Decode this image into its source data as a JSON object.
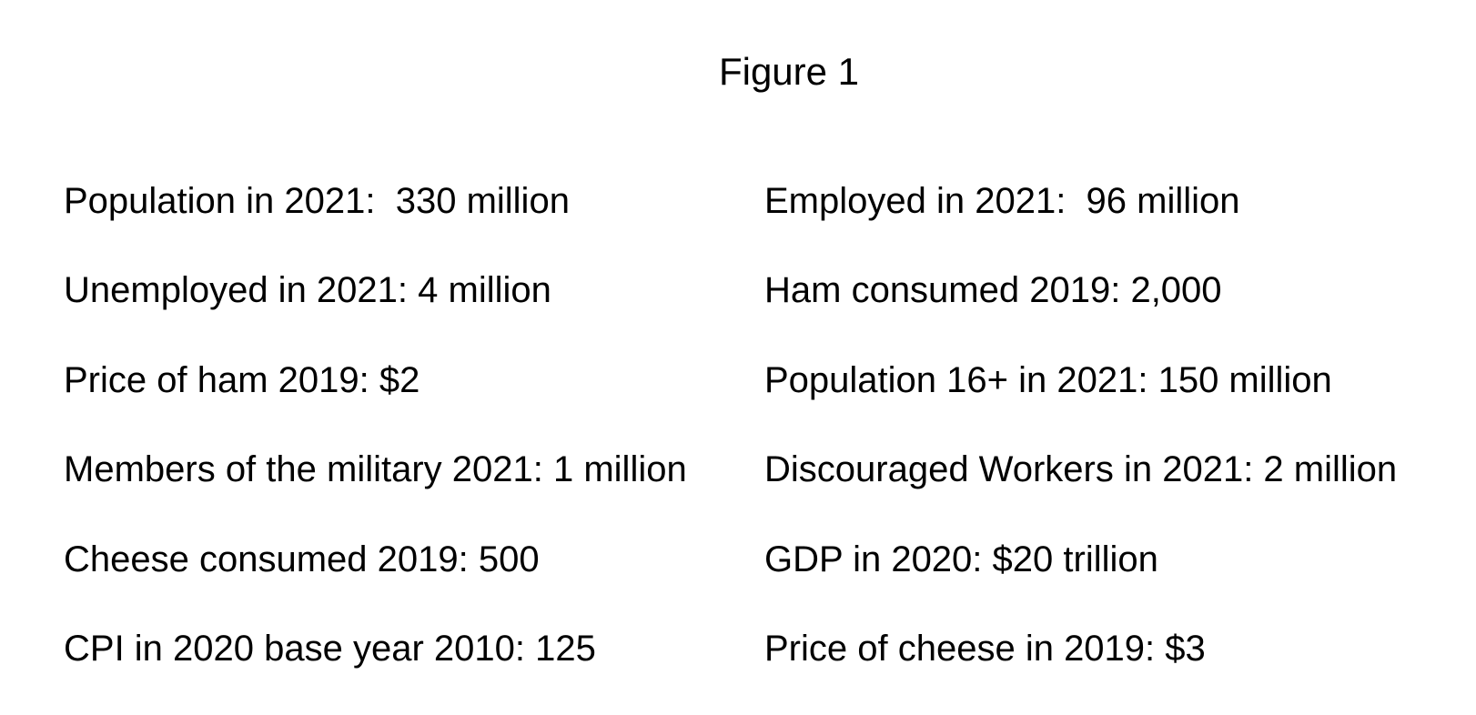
{
  "figure": {
    "title": "Figure 1"
  },
  "facts_left": [
    "Population in 2021:  330 million",
    "Unemployed in 2021: 4 million",
    "Price of ham 2019: $2",
    "Members of the military 2021: 1 million",
    "Cheese consumed 2019: 500",
    "CPI in 2020 base year 2010: 125"
  ],
  "facts_right": [
    "Employed in 2021:  96 million",
    "Ham consumed 2019: 2,000",
    "Population 16+ in 2021: 150 million",
    "Discouraged Workers in 2021: 2 million",
    "GDP in 2020: $20 trillion",
    "Price of cheese in 2019: $3"
  ]
}
